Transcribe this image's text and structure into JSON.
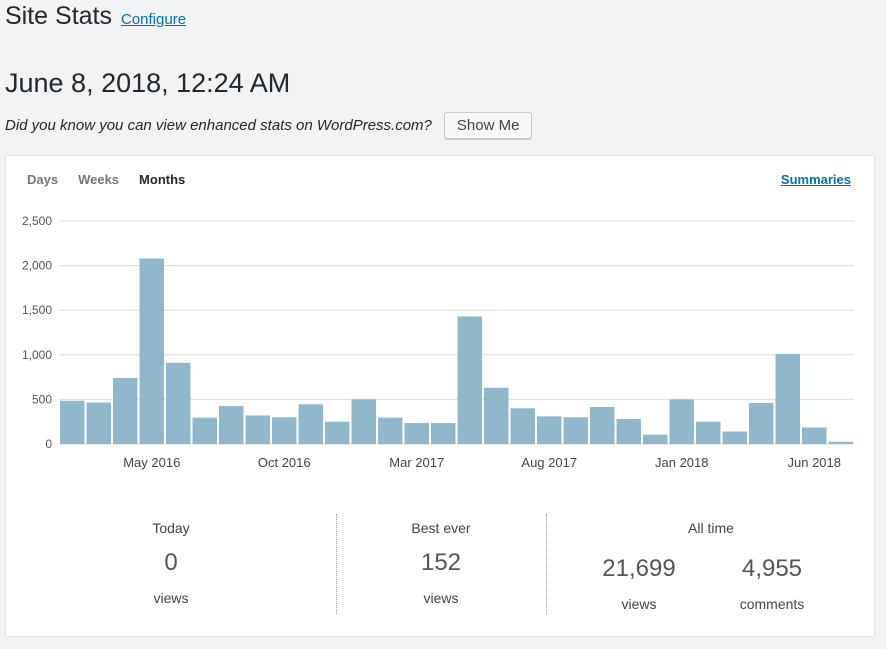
{
  "header": {
    "title": "Site Stats",
    "configure_label": "Configure"
  },
  "date_heading": "June 8, 2018, 12:24 AM",
  "promo": {
    "text": "Did you know you can view enhanced stats on WordPress.com?",
    "button_label": "Show Me"
  },
  "tabs": {
    "days": "Days",
    "weeks": "Weeks",
    "months": "Months",
    "active": "months",
    "summaries_label": "Summaries"
  },
  "chart_data": {
    "type": "bar",
    "title": "",
    "xlabel": "",
    "ylabel": "",
    "ylim": [
      0,
      2500
    ],
    "y_ticks": [
      0,
      500,
      1000,
      1500,
      2000,
      2500
    ],
    "y_tick_labels": [
      "0",
      "500",
      "1,000",
      "1,500",
      "2,000",
      "2,500"
    ],
    "x_tick_labels": [
      {
        "index": 3.5,
        "label": "May 2016"
      },
      {
        "index": 8.5,
        "label": "Oct 2016"
      },
      {
        "index": 13.5,
        "label": "Mar 2017"
      },
      {
        "index": 18.5,
        "label": "Aug 2017"
      },
      {
        "index": 23.5,
        "label": "Jan 2018"
      },
      {
        "index": 28.5,
        "label": "Jun 2018"
      }
    ],
    "categories": [
      "Feb 2016",
      "Mar 2016",
      "Apr 2016",
      "May 2016",
      "Jun 2016",
      "Jul 2016",
      "Aug 2016",
      "Sep 2016",
      "Oct 2016",
      "Nov 2016",
      "Dec 2016",
      "Jan 2017",
      "Feb 2017",
      "Mar 2017",
      "Apr 2017",
      "May 2017",
      "Jun 2017",
      "Jul 2017",
      "Aug 2017",
      "Sep 2017",
      "Oct 2017",
      "Nov 2017",
      "Dec 2017",
      "Jan 2018",
      "Feb 2018",
      "Mar 2018",
      "Apr 2018",
      "May 2018",
      "Jun 2018",
      "Jul 2018"
    ],
    "values": [
      485,
      465,
      740,
      2080,
      910,
      295,
      425,
      320,
      300,
      445,
      250,
      500,
      295,
      235,
      235,
      1430,
      630,
      400,
      310,
      300,
      415,
      280,
      105,
      500,
      250,
      140,
      460,
      1010,
      185,
      25
    ],
    "color": "#8fb8cd"
  },
  "summary": {
    "today": {
      "title": "Today",
      "value": "0",
      "label": "views"
    },
    "best": {
      "title": "Best ever",
      "value": "152",
      "label": "views"
    },
    "alltime": {
      "title": "All time",
      "views_value": "21,699",
      "views_label": "views",
      "comments_value": "4,955",
      "comments_label": "comments"
    }
  },
  "colors": {
    "link": "#0073aa",
    "background": "#f1f3f5",
    "bar": "#8fb8cd"
  }
}
